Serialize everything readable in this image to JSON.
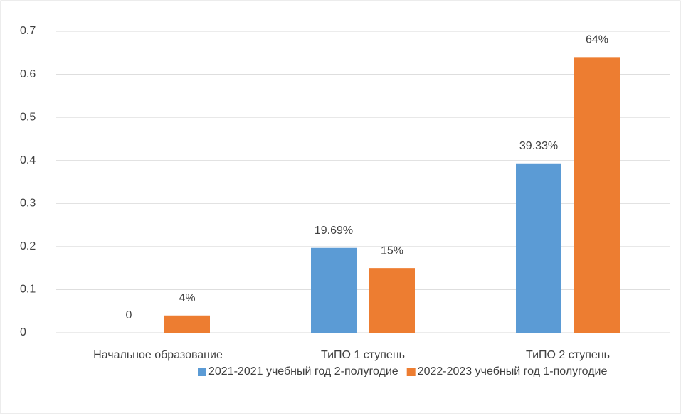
{
  "chart_data": {
    "type": "bar",
    "categories": [
      "Начальное образование",
      "ТиПО 1 ступень",
      "ТиПО 2 ступень"
    ],
    "series": [
      {
        "name": "2021-2021 учебный год 2-полугодие",
        "color": "#5b9bd5",
        "values": [
          0,
          0.1969,
          0.3933
        ],
        "value_labels": [
          "0",
          "19.69%",
          "39.33%"
        ]
      },
      {
        "name": "2022-2023 учебный год 1-полугодие",
        "color": "#ed7d31",
        "values": [
          0.04,
          0.15,
          0.64
        ],
        "value_labels": [
          "4%",
          "15%",
          "64%"
        ]
      }
    ],
    "ylim": [
      0,
      0.7
    ],
    "yticks": [
      0,
      0.1,
      0.2,
      0.3,
      0.4,
      0.5,
      0.6,
      0.7
    ],
    "grid": true,
    "legend": "bottom"
  }
}
